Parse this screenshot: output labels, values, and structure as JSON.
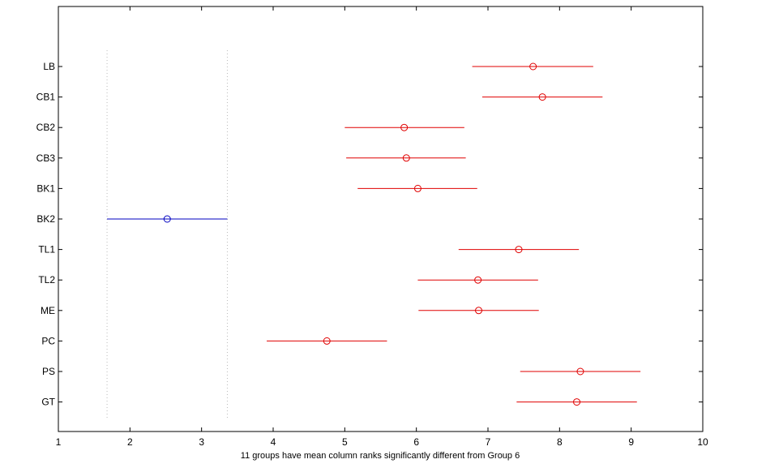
{
  "chart_data": {
    "type": "scatter",
    "title": "",
    "xlabel": "11 groups have mean column ranks significantly different from Group 6",
    "ylabel": "",
    "xlim": [
      1,
      10
    ],
    "xticks": [
      1,
      2,
      3,
      4,
      5,
      6,
      7,
      8,
      9,
      10
    ],
    "grid": false,
    "groups": [
      {
        "label": "LB",
        "mean": 7.63,
        "low": 6.78,
        "high": 8.47,
        "highlight": false
      },
      {
        "label": "CB1",
        "mean": 7.76,
        "low": 6.92,
        "high": 8.6,
        "highlight": false
      },
      {
        "label": "CB2",
        "mean": 5.83,
        "low": 5.0,
        "high": 6.67,
        "highlight": false
      },
      {
        "label": "CB3",
        "mean": 5.86,
        "low": 5.02,
        "high": 6.69,
        "highlight": false
      },
      {
        "label": "BK1",
        "mean": 6.02,
        "low": 5.18,
        "high": 6.85,
        "highlight": false
      },
      {
        "label": "BK2",
        "mean": 2.52,
        "low": 1.68,
        "high": 3.36,
        "highlight": true
      },
      {
        "label": "TL1",
        "mean": 7.43,
        "low": 6.59,
        "high": 8.27,
        "highlight": false
      },
      {
        "label": "TL2",
        "mean": 6.86,
        "low": 6.02,
        "high": 7.7,
        "highlight": false
      },
      {
        "label": "ME",
        "mean": 6.87,
        "low": 6.03,
        "high": 7.71,
        "highlight": false
      },
      {
        "label": "PC",
        "mean": 4.75,
        "low": 3.91,
        "high": 5.59,
        "highlight": false
      },
      {
        "label": "PS",
        "mean": 8.29,
        "low": 7.45,
        "high": 9.13,
        "highlight": false
      },
      {
        "label": "GT",
        "mean": 8.24,
        "low": 7.4,
        "high": 9.08,
        "highlight": false
      }
    ],
    "reference_lines": [
      1.68,
      3.36
    ],
    "colors": {
      "highlight": "#0000c0",
      "other": "#e00000",
      "reference": "#bbbbbb",
      "axis": "#000000"
    }
  }
}
